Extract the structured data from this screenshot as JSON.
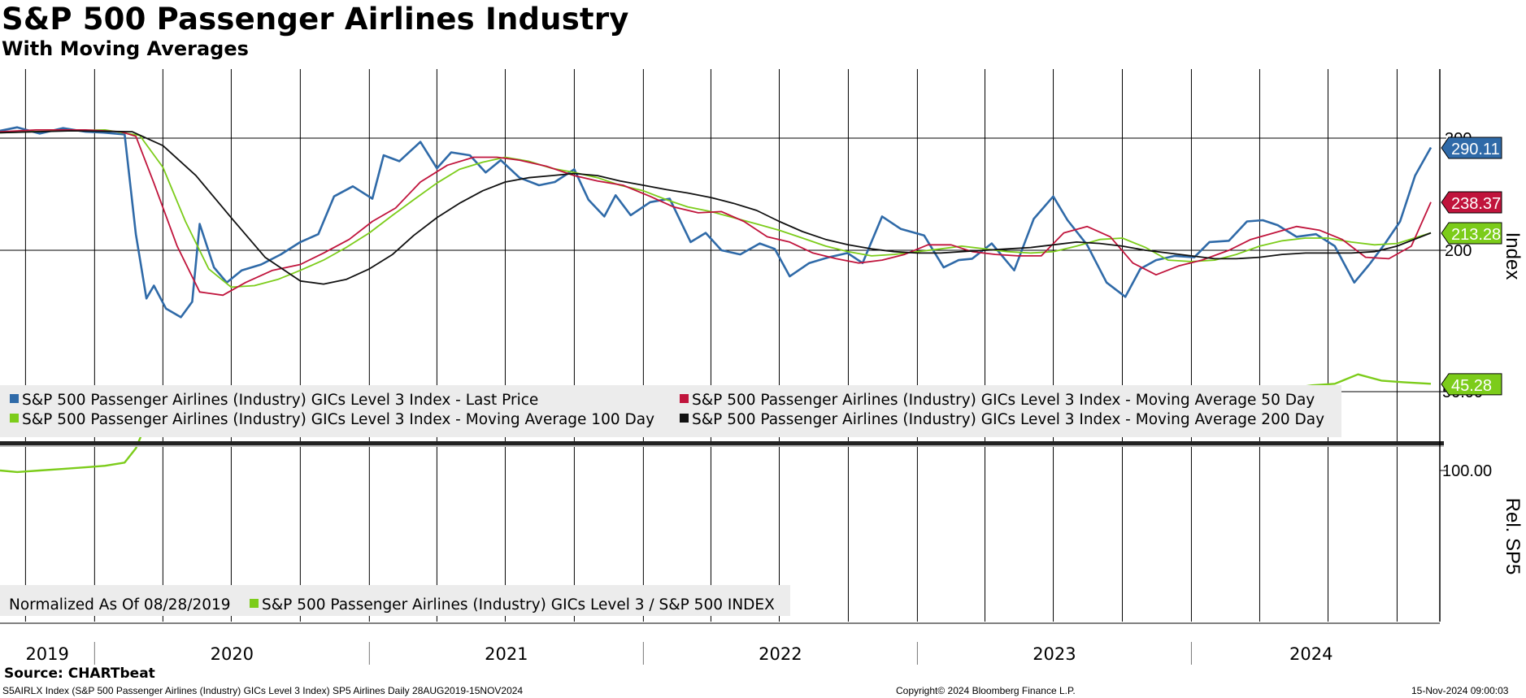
{
  "title": "S&P 500 Passenger Airlines Industry",
  "subtitle": "With Moving Averages",
  "colors": {
    "last_price": "#2f6aa8",
    "ma50": "#c0143c",
    "ma100": "#7ccc1a",
    "ma200": "#111111",
    "relative": "#7ccc1a",
    "legend_bg": "#ececec"
  },
  "chart_data": [
    {
      "type": "line",
      "title": "S&P 500 Passenger Airlines Industry",
      "ylabel": "Index",
      "y_scale": "log",
      "ylim": [
        150,
        320
      ],
      "y_ticks": [
        "200",
        "300"
      ],
      "x_axis": {
        "years": [
          "2019",
          "2020",
          "2021",
          "2022",
          "2023",
          "2024"
        ],
        "start": "2019-08-28",
        "end": "2024-11-15"
      },
      "legend": [
        "S&P 500 Passenger Airlines (Industry) GICs Level 3 Index - Last Price",
        "S&P 500 Passenger Airlines (Industry) GICs Level 3 Index - Moving Average 50 Day",
        "S&P 500 Passenger Airlines (Industry) GICs Level 3 Index - Moving Average 100 Day",
        "S&P 500 Passenger Airlines (Industry) GICs Level 3 Index - Moving Average 200 Day"
      ],
      "last_values": [
        {
          "label": "290.11",
          "color": "#2f6aa8"
        },
        {
          "label": "238.37",
          "color": "#c0143c"
        },
        {
          "label": "213.28",
          "color": "#7ccc1a"
        }
      ],
      "series": [
        {
          "name": "S&P 500 Passenger Airlines (Industry) GICs Level 3 Index - Last Price",
          "color": "#2f6aa8",
          "x": [
            "2019-08-28",
            "2019-09-20",
            "2019-10-20",
            "2019-11-20",
            "2019-12-20",
            "2020-01-15",
            "2020-02-10",
            "2020-02-25",
            "2020-03-10",
            "2020-03-20",
            "2020-04-05",
            "2020-04-25",
            "2020-05-10",
            "2020-05-20",
            "2020-06-08",
            "2020-06-25",
            "2020-07-15",
            "2020-08-10",
            "2020-09-05",
            "2020-10-01",
            "2020-10-25",
            "2020-11-15",
            "2020-12-10",
            "2021-01-05",
            "2021-01-20",
            "2021-02-10",
            "2021-03-10",
            "2021-04-01",
            "2021-04-20",
            "2021-05-15",
            "2021-06-05",
            "2021-06-25",
            "2021-07-20",
            "2021-08-15",
            "2021-09-05",
            "2021-10-01",
            "2021-10-20",
            "2021-11-10",
            "2021-11-25",
            "2021-12-15",
            "2022-01-10",
            "2022-02-05",
            "2022-03-05",
            "2022-03-25",
            "2022-04-15",
            "2022-05-10",
            "2022-06-05",
            "2022-06-25",
            "2022-07-15",
            "2022-08-10",
            "2022-09-05",
            "2022-09-30",
            "2022-10-20",
            "2022-11-15",
            "2022-12-10",
            "2023-01-10",
            "2023-02-05",
            "2023-02-25",
            "2023-03-15",
            "2023-04-10",
            "2023-05-10",
            "2023-06-05",
            "2023-07-01",
            "2023-07-20",
            "2023-08-15",
            "2023-09-10",
            "2023-10-05",
            "2023-10-25",
            "2023-11-15",
            "2023-12-10",
            "2024-01-05",
            "2024-01-25",
            "2024-02-20",
            "2024-03-15",
            "2024-04-05",
            "2024-04-25",
            "2024-05-20",
            "2024-06-15",
            "2024-07-10",
            "2024-08-05",
            "2024-08-25",
            "2024-09-15",
            "2024-10-05",
            "2024-10-25",
            "2024-11-15"
          ],
          "values": [
            308,
            312,
            305,
            311,
            307,
            306,
            304,
            212,
            168,
            176,
            162,
            157,
            166,
            220,
            188,
            178,
            186,
            190,
            197,
            206,
            212,
            243,
            252,
            241,
            282,
            276,
            296,
            269,
            285,
            282,
            265,
            277,
            260,
            253,
            256,
            268,
            240,
            226,
            244,
            227,
            238,
            241,
            206,
            213,
            200,
            197,
            205,
            201,
            182,
            191,
            195,
            198,
            191,
            226,
            216,
            211,
            188,
            193,
            194,
            205,
            186,
            224,
            243,
            223,
            204,
            178,
            169,
            187,
            193,
            196,
            195,
            206,
            207,
            222,
            223,
            219,
            210,
            212,
            203,
            178,
            190,
            205,
            222,
            262,
            290
          ]
        },
        {
          "name": "S&P 500 Passenger Airlines (Industry) GICs Level 3 Index - Moving Average 50 Day",
          "color": "#c0143c",
          "x": [
            "2019-08-28",
            "2019-10-15",
            "2019-12-20",
            "2020-02-05",
            "2020-02-25",
            "2020-03-20",
            "2020-04-20",
            "2020-05-20",
            "2020-06-20",
            "2020-07-20",
            "2020-08-25",
            "2020-10-01",
            "2020-11-01",
            "2020-12-05",
            "2021-01-05",
            "2021-02-05",
            "2021-03-10",
            "2021-04-15",
            "2021-05-20",
            "2021-06-20",
            "2021-07-20",
            "2021-08-25",
            "2021-10-01",
            "2021-11-01",
            "2021-12-05",
            "2022-01-10",
            "2022-02-10",
            "2022-03-15",
            "2022-04-15",
            "2022-05-15",
            "2022-06-15",
            "2022-07-15",
            "2022-08-15",
            "2022-09-15",
            "2022-10-15",
            "2022-11-15",
            "2022-12-15",
            "2023-01-15",
            "2023-02-15",
            "2023-03-15",
            "2023-04-15",
            "2023-05-15",
            "2023-06-15",
            "2023-07-15",
            "2023-08-15",
            "2023-09-15",
            "2023-10-15",
            "2023-11-15",
            "2023-12-15",
            "2024-01-15",
            "2024-02-20",
            "2024-03-20",
            "2024-04-20",
            "2024-05-20",
            "2024-06-20",
            "2024-07-20",
            "2024-08-20",
            "2024-09-20",
            "2024-10-20",
            "2024-11-15"
          ],
          "values": [
            307,
            309,
            309,
            307,
            302,
            255,
            203,
            172,
            170,
            178,
            186,
            190,
            198,
            208,
            222,
            233,
            256,
            272,
            280,
            280,
            277,
            271,
            262,
            257,
            253,
            243,
            234,
            229,
            230,
            222,
            210,
            206,
            198,
            194,
            191,
            193,
            197,
            204,
            204,
            199,
            197,
            196,
            196,
            213,
            218,
            210,
            191,
            183,
            189,
            193,
            200,
            208,
            213,
            218,
            215,
            208,
            195,
            194,
            203,
            238
          ]
        },
        {
          "name": "S&P 500 Passenger Airlines (Industry) GICs Level 3 Index - Moving Average 100 Day",
          "color": "#7ccc1a",
          "x": [
            "2019-08-28",
            "2019-11-15",
            "2020-01-15",
            "2020-03-01",
            "2020-04-01",
            "2020-05-01",
            "2020-06-01",
            "2020-07-01",
            "2020-08-01",
            "2020-09-01",
            "2020-10-01",
            "2020-11-01",
            "2020-12-01",
            "2021-01-01",
            "2021-02-01",
            "2021-03-01",
            "2021-04-01",
            "2021-05-01",
            "2021-06-01",
            "2021-07-01",
            "2021-08-01",
            "2021-09-01",
            "2021-10-01",
            "2021-11-01",
            "2021-12-01",
            "2022-01-01",
            "2022-02-01",
            "2022-03-01",
            "2022-04-01",
            "2022-05-01",
            "2022-06-01",
            "2022-07-01",
            "2022-08-01",
            "2022-09-01",
            "2022-10-01",
            "2022-11-01",
            "2022-12-01",
            "2023-01-01",
            "2023-02-01",
            "2023-03-01",
            "2023-04-01",
            "2023-05-01",
            "2023-06-01",
            "2023-07-01",
            "2023-08-01",
            "2023-09-01",
            "2023-10-01",
            "2023-11-01",
            "2023-12-01",
            "2024-01-01",
            "2024-02-01",
            "2024-03-01",
            "2024-04-01",
            "2024-05-01",
            "2024-06-01",
            "2024-07-01",
            "2024-08-01",
            "2024-09-01",
            "2024-10-01",
            "2024-11-15"
          ],
          "values": [
            306,
            308,
            309,
            303,
            270,
            222,
            187,
            175,
            176,
            180,
            186,
            193,
            202,
            213,
            227,
            240,
            255,
            268,
            275,
            280,
            276,
            269,
            265,
            260,
            253,
            248,
            240,
            234,
            230,
            225,
            220,
            215,
            209,
            203,
            199,
            196,
            197,
            199,
            201,
            203,
            201,
            199,
            198,
            199,
            203,
            208,
            209,
            202,
            193,
            192,
            193,
            197,
            203,
            207,
            209,
            209,
            206,
            204,
            205,
            213
          ]
        },
        {
          "name": "S&P 500 Passenger Airlines (Industry) GICs Level 3 Index - Moving Average 200 Day",
          "color": "#111111",
          "x": [
            "2019-08-28",
            "2019-12-01",
            "2020-02-20",
            "2020-04-01",
            "2020-05-15",
            "2020-07-01",
            "2020-08-15",
            "2020-10-01",
            "2020-11-01",
            "2020-12-01",
            "2021-01-01",
            "2021-02-01",
            "2021-03-01",
            "2021-04-01",
            "2021-05-01",
            "2021-06-01",
            "2021-07-01",
            "2021-08-01",
            "2021-09-01",
            "2021-10-01",
            "2021-11-01",
            "2021-12-01",
            "2022-01-01",
            "2022-02-01",
            "2022-03-01",
            "2022-04-01",
            "2022-05-01",
            "2022-06-01",
            "2022-07-01",
            "2022-08-01",
            "2022-09-01",
            "2022-10-01",
            "2022-11-01",
            "2022-12-01",
            "2023-01-01",
            "2023-02-01",
            "2023-03-01",
            "2023-04-01",
            "2023-05-01",
            "2023-06-01",
            "2023-07-01",
            "2023-08-01",
            "2023-09-01",
            "2023-10-01",
            "2023-11-01",
            "2023-12-01",
            "2024-01-01",
            "2024-02-01",
            "2024-03-01",
            "2024-04-01",
            "2024-05-01",
            "2024-06-01",
            "2024-07-01",
            "2024-08-01",
            "2024-09-01",
            "2024-10-01",
            "2024-11-15"
          ],
          "values": [
            306,
            308,
            307,
            292,
            262,
            225,
            195,
            179,
            177,
            180,
            187,
            197,
            211,
            225,
            237,
            248,
            256,
            260,
            262,
            264,
            262,
            257,
            253,
            249,
            246,
            242,
            237,
            231,
            222,
            214,
            208,
            204,
            201,
            199,
            198,
            198,
            199,
            200,
            201,
            202,
            204,
            206,
            205,
            203,
            200,
            198,
            196,
            194,
            194,
            195,
            197,
            198,
            198,
            198,
            199,
            203,
            213
          ]
        }
      ]
    },
    {
      "type": "line",
      "title": "",
      "ylabel": "Rel. SP5",
      "ylim": [
        30,
        108
      ],
      "y_ticks": [
        "100.00",
        "50.00"
      ],
      "legend": [
        "Normalized As Of 08/28/2019",
        "S&P 500 Passenger Airlines (Industry) GICs Level 3 / S&P 500 INDEX"
      ],
      "last_values": [
        {
          "label": "45.28",
          "color": "#7ccc1a"
        }
      ],
      "series": [
        {
          "name": "S&P 500 Passenger Airlines (Industry) GICs Level 3 / S&P 500 INDEX",
          "color": "#7ccc1a",
          "x": [
            "2019-08-28",
            "2019-09-20",
            "2019-10-20",
            "2019-11-20",
            "2019-12-20",
            "2020-01-15",
            "2020-02-10",
            "2020-02-25",
            "2020-03-10",
            "2020-03-20",
            "2020-04-05",
            "2020-04-25",
            "2020-05-15",
            "2020-06-08",
            "2020-06-25",
            "2020-07-20",
            "2020-08-20",
            "2020-09-20",
            "2020-10-15",
            "2020-11-10",
            "2020-12-10",
            "2021-01-05",
            "2021-02-05",
            "2021-03-10",
            "2021-04-10",
            "2021-05-10",
            "2021-06-10",
            "2021-07-10",
            "2021-08-10",
            "2021-09-10",
            "2021-10-10",
            "2021-11-10",
            "2021-12-10",
            "2022-01-10",
            "2022-02-10",
            "2022-03-10",
            "2022-04-10",
            "2022-05-10",
            "2022-06-10",
            "2022-07-10",
            "2022-08-10",
            "2022-09-10",
            "2022-10-10",
            "2022-11-10",
            "2022-12-10",
            "2023-01-10",
            "2023-02-10",
            "2023-03-10",
            "2023-04-10",
            "2023-05-10",
            "2023-06-10",
            "2023-07-10",
            "2023-08-10",
            "2023-09-10",
            "2023-10-10",
            "2023-11-10",
            "2023-12-10",
            "2024-01-10",
            "2024-02-10",
            "2024-03-10",
            "2024-04-10",
            "2024-05-10",
            "2024-06-10",
            "2024-07-10",
            "2024-08-10",
            "2024-09-10",
            "2024-10-10",
            "2024-11-15"
          ],
          "values": [
            100,
            101,
            100,
            99,
            98,
            97,
            95,
            86,
            70,
            65,
            60,
            58,
            61,
            55,
            57,
            56,
            58,
            59,
            60,
            62,
            64,
            63,
            69,
            68,
            64,
            62,
            60,
            58,
            57,
            56,
            60,
            56,
            53,
            54,
            54,
            58,
            56,
            55,
            51,
            52,
            51,
            52,
            51,
            54,
            55,
            54,
            53,
            54,
            55,
            54,
            54,
            57,
            55,
            51,
            48,
            47,
            48,
            49,
            49,
            50,
            50,
            48,
            46,
            45,
            39,
            43,
            44,
            45
          ]
        }
      ]
    }
  ],
  "right_axis": {
    "label_top": "Index",
    "label_bottom": "Rel. SP5"
  },
  "footer": {
    "source": "Source: CHARTbeat",
    "ticker_info": "S5AIRLX Index (S&P 500 Passenger Airlines (Industry) GICs Level 3 Index) SP5 Airlines  Daily 28AUG2019-15NOV2024",
    "copyright": "Copyright© 2024 Bloomberg Finance L.P.",
    "timestamp": "15-Nov-2024 09:00:03"
  }
}
